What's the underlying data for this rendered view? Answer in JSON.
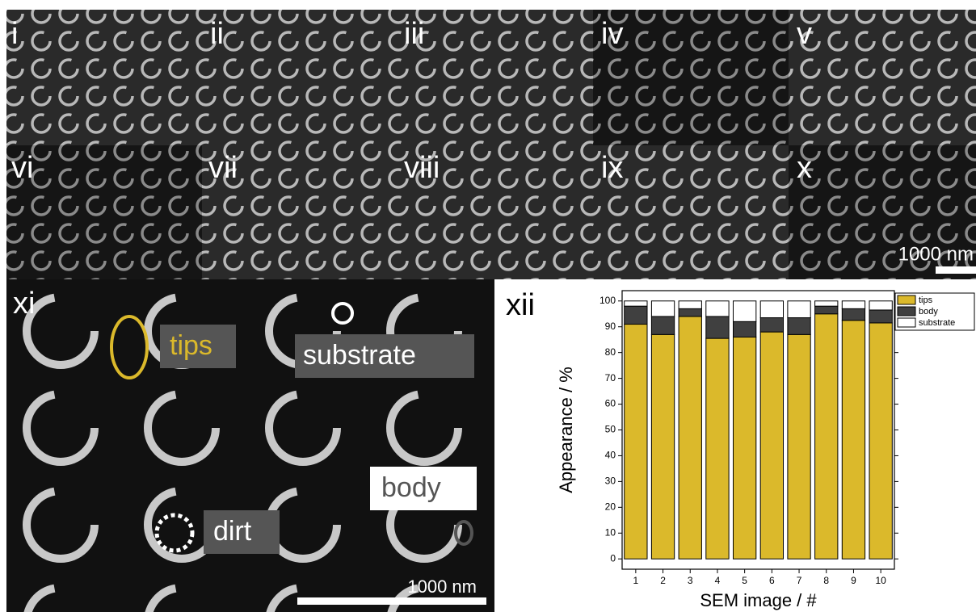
{
  "panels": [
    "i",
    "ii",
    "iii",
    "iv",
    "v",
    "vi",
    "vii",
    "viii",
    "ix",
    "x",
    "xi",
    "xii"
  ],
  "scale_bar": "1000 nm",
  "annotations": {
    "tips": "tips",
    "substrate": "substrate",
    "body": "body",
    "dirt": "dirt"
  },
  "chart_data": {
    "type": "stacked-bar",
    "xlabel": "SEM image / #",
    "ylabel": "Appearance / %",
    "categories": [
      "1",
      "2",
      "3",
      "4",
      "5",
      "6",
      "7",
      "8",
      "9",
      "10"
    ],
    "series": [
      {
        "name": "tips",
        "color": "#dbb92b",
        "values": [
          91,
          87,
          94,
          85.5,
          86,
          88,
          87,
          95,
          92.5,
          91.5
        ]
      },
      {
        "name": "body",
        "color": "#404040",
        "values": [
          7,
          7,
          3,
          8.5,
          6,
          5.5,
          6.5,
          3,
          4.5,
          5
        ]
      },
      {
        "name": "substrate",
        "color": "#ffffff",
        "values": [
          2,
          6,
          3,
          6,
          8,
          6.5,
          6.5,
          2,
          3,
          3.5
        ]
      }
    ],
    "ylim": [
      -4,
      104
    ],
    "yticks": [
      0,
      10,
      20,
      30,
      40,
      50,
      60,
      70,
      80,
      90,
      100
    ],
    "legend": "top-right"
  }
}
